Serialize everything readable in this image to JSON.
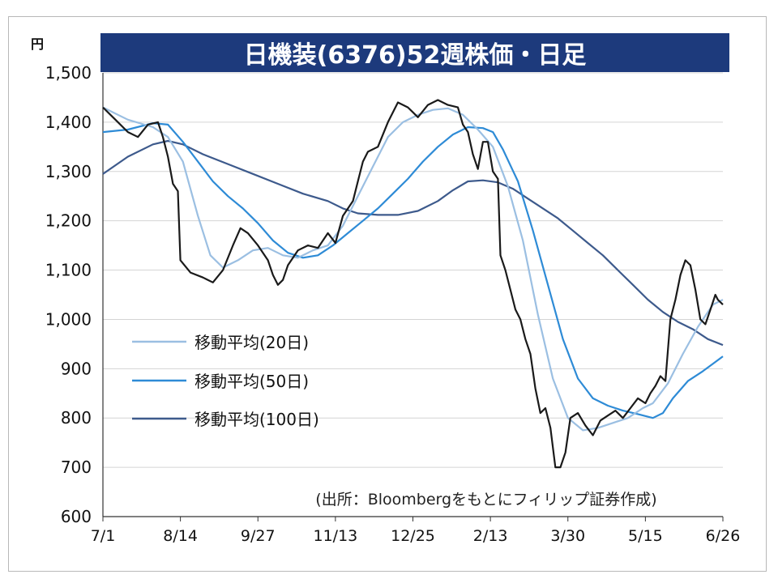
{
  "chart_data": {
    "type": "line",
    "title": "日機装(6376)52週株価・日足",
    "unit_label": "円",
    "source_note": "(出所：Bloombergをもとにフィリップ証券作成)",
    "ylim": [
      600,
      1500
    ],
    "y_ticks": [
      1500,
      1400,
      1300,
      1200,
      1100,
      1000,
      900,
      800,
      700,
      600
    ],
    "y_tick_labels": [
      "1,500",
      "1,400",
      "1,300",
      "1,200",
      "1,100",
      "1,000",
      "900",
      "800",
      "700",
      "600"
    ],
    "x_range": [
      0,
      248
    ],
    "x_ticks": [
      {
        "label": "7/1",
        "pos": 0
      },
      {
        "label": "8/14",
        "pos": 31
      },
      {
        "label": "9/27",
        "pos": 62
      },
      {
        "label": "11/13",
        "pos": 93
      },
      {
        "label": "12/25",
        "pos": 124
      },
      {
        "label": "2/13",
        "pos": 155
      },
      {
        "label": "3/30",
        "pos": 186
      },
      {
        "label": "5/15",
        "pos": 217
      },
      {
        "label": "6/26",
        "pos": 248
      }
    ],
    "grid": true,
    "legend_position": "center-left",
    "series": [
      {
        "name": "日足",
        "color": "#1a1a1a",
        "points": [
          [
            0,
            1430
          ],
          [
            5,
            1405
          ],
          [
            10,
            1380
          ],
          [
            14,
            1370
          ],
          [
            18,
            1395
          ],
          [
            22,
            1400
          ],
          [
            24,
            1370
          ],
          [
            26,
            1330
          ],
          [
            28,
            1275
          ],
          [
            30,
            1260
          ],
          [
            31,
            1120
          ],
          [
            35,
            1095
          ],
          [
            40,
            1085
          ],
          [
            44,
            1075
          ],
          [
            48,
            1100
          ],
          [
            52,
            1150
          ],
          [
            55,
            1185
          ],
          [
            58,
            1175
          ],
          [
            62,
            1150
          ],
          [
            66,
            1120
          ],
          [
            68,
            1090
          ],
          [
            70,
            1070
          ],
          [
            72,
            1080
          ],
          [
            74,
            1110
          ],
          [
            78,
            1140
          ],
          [
            82,
            1150
          ],
          [
            86,
            1145
          ],
          [
            90,
            1175
          ],
          [
            93,
            1155
          ],
          [
            96,
            1210
          ],
          [
            100,
            1240
          ],
          [
            102,
            1280
          ],
          [
            104,
            1320
          ],
          [
            106,
            1340
          ],
          [
            110,
            1350
          ],
          [
            114,
            1400
          ],
          [
            118,
            1440
          ],
          [
            122,
            1430
          ],
          [
            126,
            1410
          ],
          [
            130,
            1435
          ],
          [
            134,
            1445
          ],
          [
            138,
            1435
          ],
          [
            142,
            1430
          ],
          [
            144,
            1395
          ],
          [
            146,
            1380
          ],
          [
            148,
            1335
          ],
          [
            150,
            1305
          ],
          [
            152,
            1360
          ],
          [
            154,
            1360
          ],
          [
            156,
            1300
          ],
          [
            158,
            1285
          ],
          [
            159,
            1130
          ],
          [
            161,
            1100
          ],
          [
            163,
            1060
          ],
          [
            165,
            1020
          ],
          [
            167,
            1000
          ],
          [
            169,
            960
          ],
          [
            171,
            930
          ],
          [
            173,
            860
          ],
          [
            175,
            810
          ],
          [
            177,
            820
          ],
          [
            179,
            780
          ],
          [
            181,
            700
          ],
          [
            183,
            700
          ],
          [
            185,
            730
          ],
          [
            187,
            800
          ],
          [
            190,
            810
          ],
          [
            193,
            785
          ],
          [
            196,
            765
          ],
          [
            199,
            795
          ],
          [
            202,
            805
          ],
          [
            205,
            815
          ],
          [
            208,
            800
          ],
          [
            211,
            820
          ],
          [
            214,
            840
          ],
          [
            217,
            830
          ],
          [
            219,
            850
          ],
          [
            221,
            865
          ],
          [
            223,
            885
          ],
          [
            225,
            875
          ],
          [
            227,
            1000
          ],
          [
            229,
            1040
          ],
          [
            231,
            1090
          ],
          [
            233,
            1120
          ],
          [
            235,
            1110
          ],
          [
            237,
            1060
          ],
          [
            239,
            1000
          ],
          [
            241,
            990
          ],
          [
            243,
            1020
          ],
          [
            245,
            1050
          ],
          [
            246,
            1040
          ],
          [
            248,
            1030
          ]
        ]
      },
      {
        "name": "移動平均(20日)",
        "color": "#9bbfe2",
        "points": [
          [
            0,
            1430
          ],
          [
            10,
            1405
          ],
          [
            20,
            1390
          ],
          [
            26,
            1370
          ],
          [
            32,
            1320
          ],
          [
            38,
            1210
          ],
          [
            43,
            1130
          ],
          [
            48,
            1105
          ],
          [
            54,
            1120
          ],
          [
            60,
            1140
          ],
          [
            66,
            1145
          ],
          [
            72,
            1130
          ],
          [
            78,
            1125
          ],
          [
            84,
            1140
          ],
          [
            90,
            1150
          ],
          [
            96,
            1190
          ],
          [
            102,
            1250
          ],
          [
            108,
            1310
          ],
          [
            114,
            1370
          ],
          [
            120,
            1400
          ],
          [
            126,
            1415
          ],
          [
            132,
            1425
          ],
          [
            138,
            1428
          ],
          [
            144,
            1415
          ],
          [
            150,
            1385
          ],
          [
            156,
            1350
          ],
          [
            162,
            1270
          ],
          [
            168,
            1160
          ],
          [
            174,
            1010
          ],
          [
            180,
            880
          ],
          [
            186,
            800
          ],
          [
            192,
            775
          ],
          [
            198,
            780
          ],
          [
            204,
            790
          ],
          [
            210,
            800
          ],
          [
            216,
            820
          ],
          [
            220,
            830
          ],
          [
            226,
            870
          ],
          [
            232,
            930
          ],
          [
            238,
            985
          ],
          [
            244,
            1030
          ],
          [
            248,
            1040
          ]
        ]
      },
      {
        "name": "移動平均(50日)",
        "color": "#2e8bd6",
        "points": [
          [
            0,
            1380
          ],
          [
            10,
            1385
          ],
          [
            20,
            1398
          ],
          [
            26,
            1395
          ],
          [
            32,
            1360
          ],
          [
            38,
            1320
          ],
          [
            44,
            1280
          ],
          [
            50,
            1250
          ],
          [
            56,
            1225
          ],
          [
            62,
            1195
          ],
          [
            68,
            1160
          ],
          [
            74,
            1135
          ],
          [
            80,
            1125
          ],
          [
            86,
            1130
          ],
          [
            92,
            1150
          ],
          [
            98,
            1175
          ],
          [
            104,
            1200
          ],
          [
            110,
            1225
          ],
          [
            116,
            1255
          ],
          [
            122,
            1285
          ],
          [
            128,
            1320
          ],
          [
            134,
            1350
          ],
          [
            140,
            1375
          ],
          [
            146,
            1390
          ],
          [
            152,
            1388
          ],
          [
            156,
            1380
          ],
          [
            160,
            1345
          ],
          [
            166,
            1280
          ],
          [
            172,
            1180
          ],
          [
            178,
            1070
          ],
          [
            184,
            960
          ],
          [
            190,
            880
          ],
          [
            196,
            840
          ],
          [
            202,
            825
          ],
          [
            208,
            815
          ],
          [
            214,
            808
          ],
          [
            220,
            800
          ],
          [
            224,
            810
          ],
          [
            228,
            840
          ],
          [
            234,
            875
          ],
          [
            240,
            895
          ],
          [
            244,
            910
          ],
          [
            248,
            925
          ]
        ]
      },
      {
        "name": "移動平均(100日)",
        "color": "#3d5a8c",
        "points": [
          [
            0,
            1295
          ],
          [
            10,
            1330
          ],
          [
            20,
            1355
          ],
          [
            26,
            1362
          ],
          [
            32,
            1355
          ],
          [
            40,
            1335
          ],
          [
            50,
            1315
          ],
          [
            60,
            1295
          ],
          [
            70,
            1275
          ],
          [
            80,
            1255
          ],
          [
            90,
            1240
          ],
          [
            96,
            1225
          ],
          [
            102,
            1215
          ],
          [
            110,
            1212
          ],
          [
            118,
            1212
          ],
          [
            126,
            1220
          ],
          [
            134,
            1240
          ],
          [
            140,
            1262
          ],
          [
            146,
            1280
          ],
          [
            152,
            1282
          ],
          [
            158,
            1278
          ],
          [
            164,
            1265
          ],
          [
            170,
            1245
          ],
          [
            176,
            1225
          ],
          [
            182,
            1205
          ],
          [
            188,
            1180
          ],
          [
            194,
            1155
          ],
          [
            200,
            1130
          ],
          [
            206,
            1100
          ],
          [
            212,
            1070
          ],
          [
            218,
            1040
          ],
          [
            224,
            1015
          ],
          [
            230,
            995
          ],
          [
            236,
            980
          ],
          [
            242,
            960
          ],
          [
            248,
            948
          ]
        ]
      }
    ]
  }
}
